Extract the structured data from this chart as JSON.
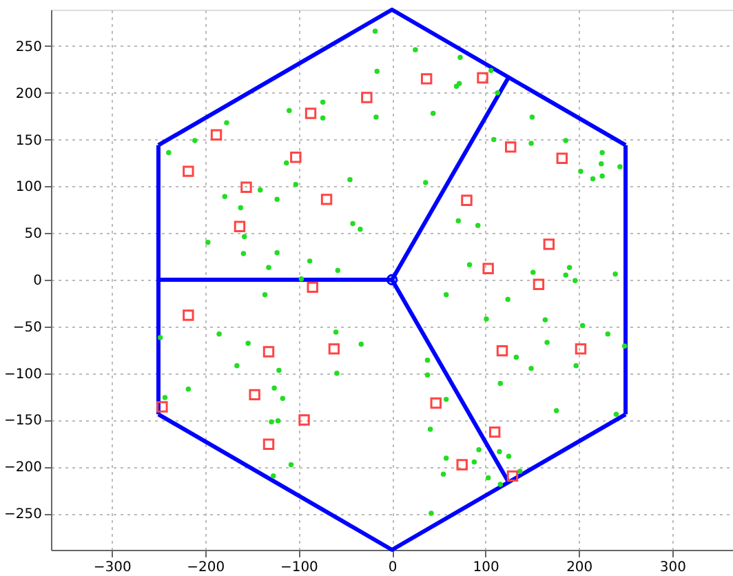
{
  "chart_data": {
    "type": "scatter",
    "xlim": [
      -365,
      365
    ],
    "ylim": [
      -289,
      289
    ],
    "xticks": [
      -300,
      -200,
      -100,
      0,
      100,
      200,
      300
    ],
    "yticks": [
      -250,
      -200,
      -150,
      -100,
      -50,
      0,
      50,
      100,
      150,
      200,
      250
    ],
    "grid": true,
    "series": [
      {
        "type": "line",
        "color": "#0000ff",
        "marker": "none",
        "line_style": "solid",
        "x": [
          -250,
          0,
          250
        ],
        "values": [
          144,
          289,
          144
        ]
      },
      {
        "type": "line",
        "color": "#0000ff",
        "marker": "none",
        "line_style": "solid",
        "x": [
          -250,
          0,
          250
        ],
        "values": [
          -144,
          -289,
          -144
        ]
      },
      {
        "type": "line",
        "color": "#0000ff",
        "marker": "none",
        "line_style": "solid",
        "x": [
          -250,
          -250
        ],
        "values": [
          144,
          -144
        ]
      },
      {
        "type": "line",
        "color": "#0000ff",
        "marker": "none",
        "line_style": "solid",
        "x": [
          250,
          250
        ],
        "values": [
          144,
          -144
        ]
      },
      {
        "type": "line",
        "color": "#0000ff",
        "marker": "none",
        "line_style": "solid",
        "x": [
          -250,
          0
        ],
        "values": [
          0,
          0
        ]
      },
      {
        "type": "line",
        "color": "#0000ff",
        "marker": "none",
        "line_style": "solid",
        "x": [
          0,
          125
        ],
        "values": [
          0,
          217
        ]
      },
      {
        "type": "line",
        "color": "#0000ff",
        "marker": "none",
        "line_style": "solid",
        "x": [
          0,
          125
        ],
        "values": [
          0,
          -217
        ]
      },
      {
        "color": "#0000ff",
        "marker": "circle",
        "x": [
          0
        ],
        "values": [
          0
        ]
      },
      {
        "color": "#22dd22",
        "marker": "circle",
        "x": [
          -18,
          -16,
          -17,
          -74,
          -74,
          -110,
          -177,
          -211,
          -239,
          -113,
          -45,
          -103,
          -141,
          -179,
          -123,
          -162,
          -158,
          -197,
          -159,
          -123,
          -42,
          -34,
          -88,
          -132,
          -58,
          -97,
          25,
          73,
          106,
          69,
          72,
          113,
          44,
          150,
          109,
          149,
          186,
          225,
          224,
          244,
          202,
          215,
          225,
          36,
          71,
          92,
          83,
          151,
          190,
          186,
          196,
          239,
          -136,
          -248,
          -185,
          -154,
          -60,
          -33,
          -166,
          -121,
          -59,
          -218,
          -126,
          -117,
          -243,
          -129,
          -122,
          -108,
          -127,
          58,
          124,
          101,
          164,
          204,
          231,
          166,
          249,
          38,
          133,
          197,
          149,
          38,
          116,
          58,
          176,
          240,
          41,
          93,
          115,
          125,
          58,
          88,
          55,
          103,
          137,
          116,
          42
        ],
        "values": [
          266,
          223,
          174,
          190,
          173,
          181,
          168,
          149,
          136,
          125,
          107,
          102,
          96,
          89,
          86,
          77,
          46,
          40,
          28,
          29,
          60,
          54,
          20,
          13,
          10,
          1,
          246,
          238,
          224,
          207,
          210,
          200,
          178,
          174,
          150,
          146,
          149,
          136,
          124,
          121,
          116,
          108,
          111,
          104,
          63,
          58,
          16,
          8,
          13,
          5,
          -1,
          6,
          -16,
          -62,
          -58,
          -68,
          -56,
          -69,
          -92,
          -97,
          -100,
          -117,
          -116,
          -127,
          -126,
          -152,
          -151,
          -198,
          -210,
          -16,
          -21,
          -42,
          -43,
          -49,
          -58,
          -67,
          -71,
          -86,
          -83,
          -92,
          -95,
          -102,
          -111,
          -128,
          -140,
          -144,
          -160,
          -182,
          -184,
          -189,
          -191,
          -195,
          -208,
          -212,
          -205,
          -219,
          -250
        ]
      },
      {
        "color": "#ff4444",
        "marker": "square",
        "x": [
          -27,
          -87,
          -188,
          -103,
          -218,
          -156,
          -70,
          -163,
          -85,
          37,
          97,
          127,
          182,
          80,
          168,
          103,
          157,
          -218,
          -132,
          -62,
          -147,
          -246,
          -94,
          -132,
          118,
          202,
          47,
          110,
          75,
          129
        ],
        "values": [
          195,
          178,
          155,
          131,
          116,
          99,
          86,
          57,
          -8,
          215,
          216,
          142,
          130,
          85,
          38,
          12,
          -5,
          -38,
          -77,
          -74,
          -123,
          -136,
          -150,
          -176,
          -76,
          -74,
          -132,
          -163,
          -198,
          -210
        ]
      }
    ]
  }
}
